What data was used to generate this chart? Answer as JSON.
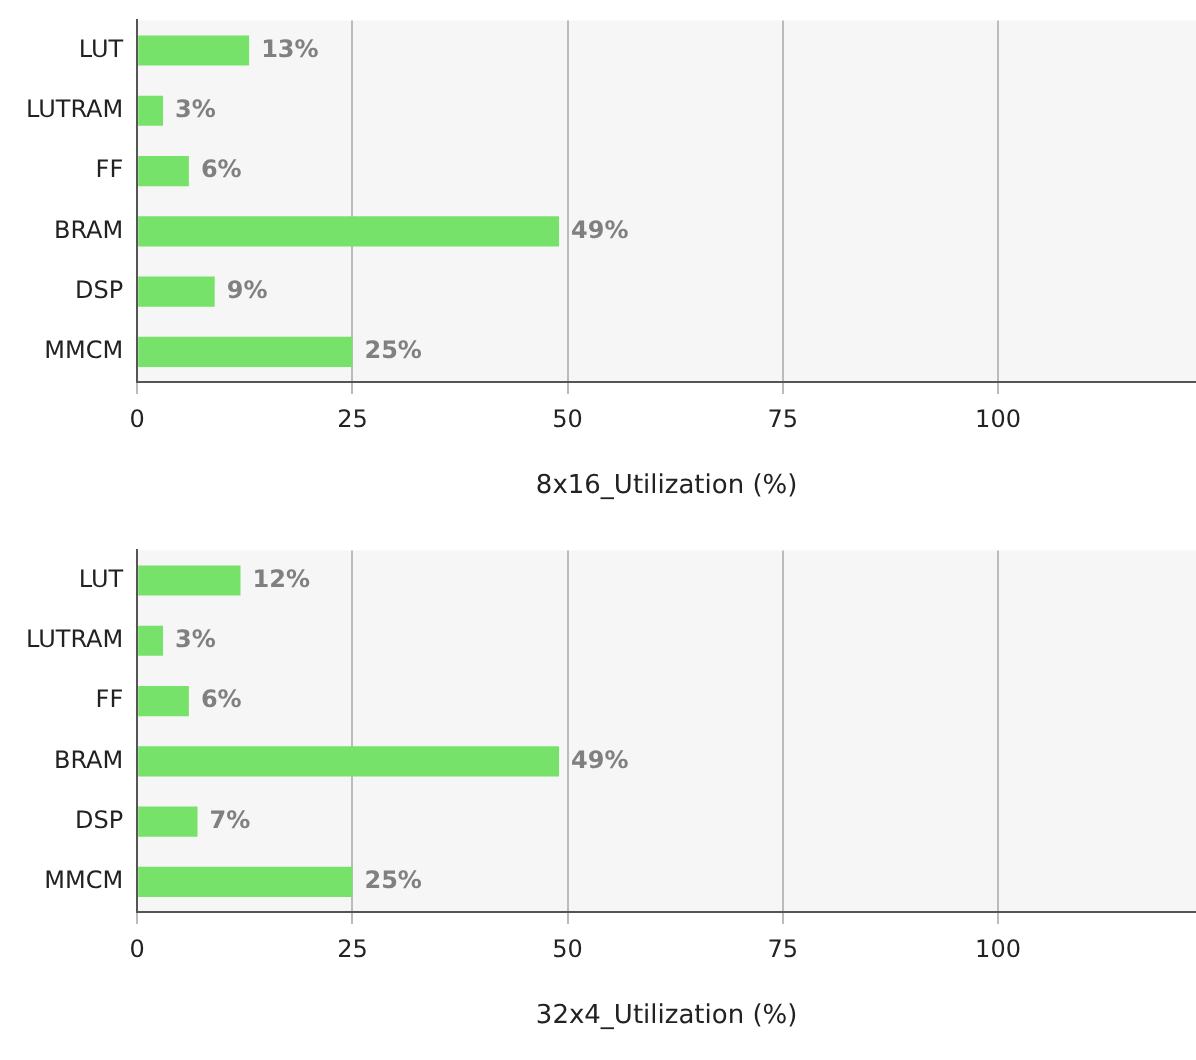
{
  "chart_data": [
    {
      "type": "bar",
      "orientation": "horizontal",
      "categories": [
        "LUT",
        "LUTRAM",
        "FF",
        "BRAM",
        "DSP",
        "MMCM"
      ],
      "values": [
        13,
        3,
        6,
        49,
        9,
        25
      ],
      "value_labels": [
        "13%",
        "3%",
        "6%",
        "49%",
        "9%",
        "25%"
      ],
      "color": "#77e26a",
      "xlabel": "8x16_Utilization (%)",
      "xlim": [
        0,
        123
      ],
      "xticks": [
        0,
        25,
        50,
        75,
        100
      ],
      "grid": "x",
      "legend": false
    },
    {
      "type": "bar",
      "orientation": "horizontal",
      "categories": [
        "LUT",
        "LUTRAM",
        "FF",
        "BRAM",
        "DSP",
        "MMCM"
      ],
      "values": [
        12,
        3,
        6,
        49,
        7,
        25
      ],
      "value_labels": [
        "12%",
        "3%",
        "6%",
        "49%",
        "7%",
        "25%"
      ],
      "color": "#77e26a",
      "xlabel": "32x4_Utilization (%)",
      "xlim": [
        0,
        123
      ],
      "xticks": [
        0,
        25,
        50,
        75,
        100
      ],
      "grid": "x",
      "legend": false
    }
  ]
}
